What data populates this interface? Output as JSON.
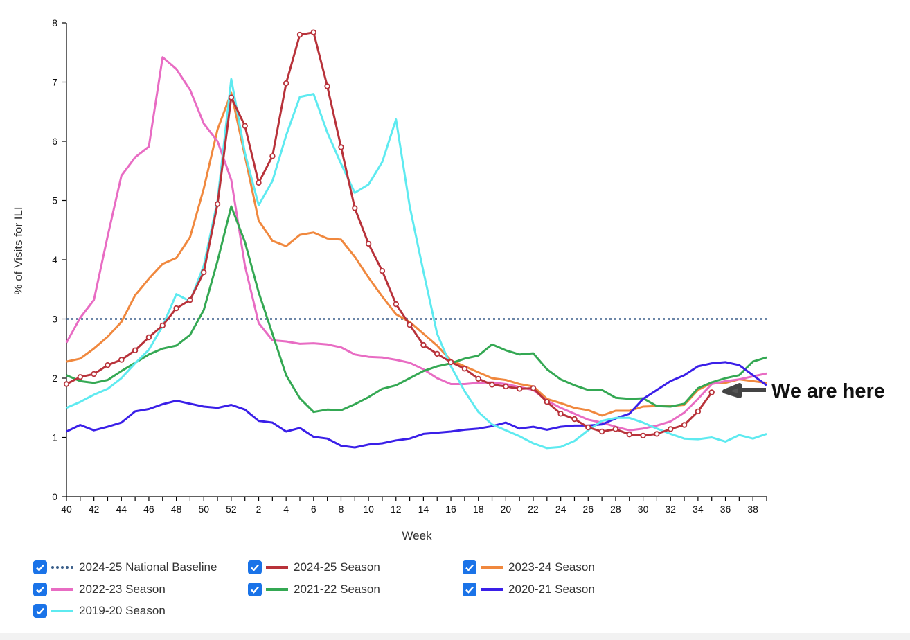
{
  "chart_data": {
    "type": "line",
    "title": "",
    "xlabel": "Week",
    "ylabel": "% of Visits for ILI",
    "ylim": [
      0,
      8
    ],
    "yticks": [
      0,
      1,
      2,
      3,
      4,
      5,
      6,
      7,
      8
    ],
    "weeks": [
      40,
      41,
      42,
      43,
      44,
      45,
      46,
      47,
      48,
      49,
      50,
      51,
      52,
      1,
      2,
      3,
      4,
      5,
      6,
      7,
      8,
      9,
      10,
      11,
      12,
      13,
      14,
      15,
      16,
      17,
      18,
      19,
      20,
      21,
      22,
      23,
      24,
      25,
      26,
      27,
      28,
      29,
      30,
      31,
      32,
      33,
      34,
      35,
      36,
      37,
      38,
      39
    ],
    "xtick_labels": [
      "40",
      "42",
      "44",
      "46",
      "48",
      "50",
      "52",
      "2",
      "4",
      "6",
      "8",
      "10",
      "12",
      "14",
      "16",
      "18",
      "20",
      "22",
      "24",
      "26",
      "28",
      "30",
      "32",
      "34",
      "36",
      "38"
    ],
    "baseline": {
      "name": "2024-25 National Baseline",
      "value": 3.0,
      "color": "#3b5f8a"
    },
    "series": [
      {
        "name": "2023-24 Season",
        "color": "#f0883e",
        "values": [
          2.28,
          2.33,
          2.5,
          2.7,
          2.95,
          3.4,
          3.68,
          3.93,
          4.03,
          4.38,
          5.2,
          6.2,
          6.82,
          5.75,
          4.66,
          4.32,
          4.23,
          4.42,
          4.46,
          4.36,
          4.34,
          4.05,
          3.7,
          3.38,
          3.08,
          2.95,
          2.75,
          2.55,
          2.3,
          2.2,
          2.1,
          2.0,
          1.97,
          1.9,
          1.86,
          1.65,
          1.58,
          1.5,
          1.46,
          1.37,
          1.45,
          1.45,
          1.52,
          1.53,
          1.53,
          1.55,
          1.8,
          1.92,
          1.92,
          1.98,
          1.95,
          1.92
        ]
      },
      {
        "name": "2022-23 Season",
        "color": "#e86cc3",
        "values": [
          2.6,
          3.02,
          3.32,
          4.4,
          5.42,
          5.73,
          5.91,
          7.42,
          7.22,
          6.87,
          6.3,
          6.0,
          5.35,
          3.9,
          2.93,
          2.64,
          2.62,
          2.58,
          2.59,
          2.57,
          2.52,
          2.4,
          2.36,
          2.35,
          2.31,
          2.26,
          2.15,
          2.0,
          1.9,
          1.9,
          1.92,
          1.93,
          1.9,
          1.85,
          1.8,
          1.62,
          1.5,
          1.4,
          1.3,
          1.25,
          1.18,
          1.12,
          1.15,
          1.2,
          1.27,
          1.42,
          1.65,
          1.9,
          1.95,
          1.98,
          2.03,
          2.08
        ]
      },
      {
        "name": "2021-22 Season",
        "color": "#34a853",
        "values": [
          2.05,
          1.95,
          1.92,
          1.97,
          2.12,
          2.26,
          2.4,
          2.5,
          2.55,
          2.73,
          3.15,
          3.98,
          4.9,
          4.3,
          3.45,
          2.75,
          2.05,
          1.66,
          1.43,
          1.47,
          1.46,
          1.56,
          1.68,
          1.82,
          1.88,
          2.0,
          2.12,
          2.2,
          2.25,
          2.33,
          2.38,
          2.57,
          2.47,
          2.4,
          2.42,
          2.15,
          1.98,
          1.88,
          1.8,
          1.8,
          1.67,
          1.65,
          1.66,
          1.53,
          1.52,
          1.57,
          1.83,
          1.93,
          2.0,
          2.05,
          2.28,
          2.35
        ]
      },
      {
        "name": "2020-21 Season",
        "color": "#3a1fe8",
        "values": [
          1.1,
          1.21,
          1.12,
          1.18,
          1.25,
          1.44,
          1.48,
          1.56,
          1.62,
          1.57,
          1.52,
          1.5,
          1.55,
          1.47,
          1.28,
          1.25,
          1.1,
          1.16,
          1.01,
          0.98,
          0.86,
          0.83,
          0.88,
          0.9,
          0.95,
          0.98,
          1.06,
          1.08,
          1.1,
          1.13,
          1.15,
          1.19,
          1.25,
          1.15,
          1.18,
          1.13,
          1.18,
          1.2,
          1.2,
          1.22,
          1.32,
          1.4,
          1.65,
          1.8,
          1.95,
          2.05,
          2.2,
          2.25,
          2.27,
          2.22,
          2.05,
          1.88
        ]
      },
      {
        "name": "2019-20 Season",
        "color": "#5eeaf0",
        "values": [
          1.5,
          1.6,
          1.72,
          1.82,
          2.0,
          2.25,
          2.48,
          2.88,
          3.42,
          3.3,
          3.9,
          5.0,
          7.05,
          5.8,
          4.92,
          5.33,
          6.1,
          6.75,
          6.8,
          6.15,
          5.62,
          5.13,
          5.27,
          5.65,
          6.37,
          4.9,
          3.8,
          2.75,
          2.2,
          1.78,
          1.43,
          1.22,
          1.12,
          1.02,
          0.9,
          0.82,
          0.84,
          0.94,
          1.12,
          1.28,
          1.33,
          1.33,
          1.25,
          1.15,
          1.06,
          0.98,
          0.97,
          1.0,
          0.93,
          1.04,
          0.98,
          1.06
        ]
      },
      {
        "name": "2024-25 Season",
        "color": "#b8323a",
        "markers": true,
        "values": [
          1.9,
          2.02,
          2.07,
          2.22,
          2.31,
          2.47,
          2.69,
          2.89,
          3.18,
          3.32,
          3.79,
          4.94,
          6.74,
          6.26,
          5.3,
          5.75,
          6.98,
          7.8,
          7.84,
          6.93,
          5.9,
          4.87,
          4.27,
          3.81,
          3.25,
          2.9,
          2.56,
          2.41,
          2.27,
          2.16,
          1.99,
          1.89,
          1.86,
          1.82,
          1.83,
          1.6,
          1.4,
          1.31,
          1.17,
          1.1,
          1.14,
          1.05,
          1.03,
          1.06,
          1.14,
          1.21,
          1.44,
          1.76
        ]
      }
    ],
    "annotations": [
      {
        "text": "We are here",
        "week": 35,
        "value": 1.76
      }
    ]
  },
  "legend": [
    {
      "label": "2024-25 National Baseline",
      "color": "#3b5f8a",
      "style": "dotted"
    },
    {
      "label": "2024-25 Season",
      "color": "#b8323a",
      "style": "solid"
    },
    {
      "label": "2023-24 Season",
      "color": "#f0883e",
      "style": "solid"
    },
    {
      "label": "2022-23 Season",
      "color": "#e86cc3",
      "style": "solid"
    },
    {
      "label": "2021-22 Season",
      "color": "#34a853",
      "style": "solid"
    },
    {
      "label": "2020-21 Season",
      "color": "#3a1fe8",
      "style": "solid"
    },
    {
      "label": "2019-20 Season",
      "color": "#5eeaf0",
      "style": "solid"
    }
  ]
}
